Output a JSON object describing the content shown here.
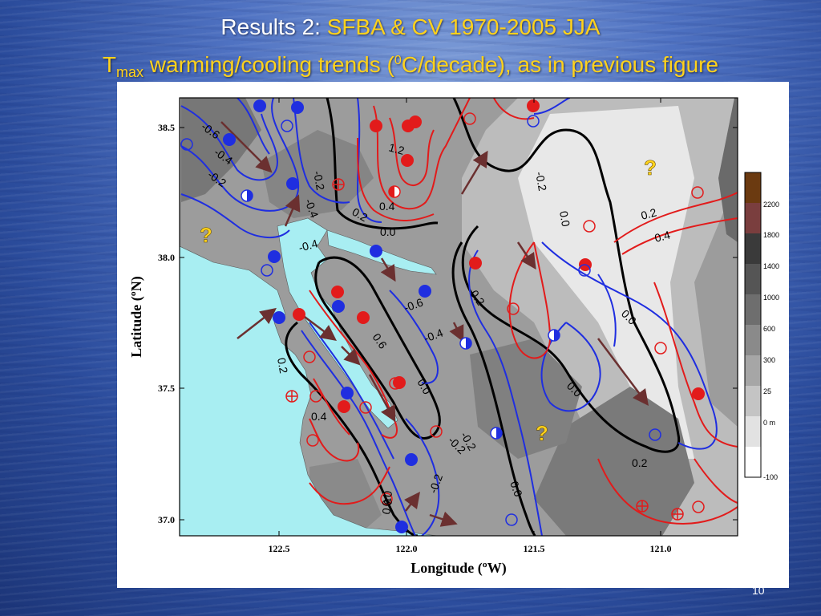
{
  "slide": {
    "title_prefix": "Results 2: ",
    "title_highlight": "SFBA & CV 1970-2005 JJA",
    "line2_T": "T",
    "line2_sub": "max",
    "line2_part1": " warming/cooling trends (",
    "line2_sup": "0",
    "line2_part2": "C/decade), as in previous figure",
    "page_number": "10"
  },
  "map": {
    "y_ticks": [
      "38.5",
      "38.0",
      "37.5",
      "37.0"
    ],
    "x_ticks": [
      "122.5",
      "122.0",
      "121.5",
      "121.0"
    ],
    "xlabel": "Longitude (ºW)",
    "ylabel": "Latitude (ºN)",
    "question_mark": "?",
    "contour_labels": [
      "-0.6",
      "-0.4",
      "-0.2",
      "-0.2",
      "-0.4",
      "-0.4",
      "0.2",
      "0.4",
      "1.2",
      "0.0",
      "-0.2",
      "0.0",
      "0.2",
      "0.4",
      "-0.6",
      "-0.4",
      "0.6",
      "0.2",
      "0.0",
      "0.0",
      "0.0",
      "-0.2",
      "0.2",
      "0.4",
      "-0.2",
      "0.0",
      "0.0",
      "0.2",
      "-0.2",
      "0.0"
    ],
    "legend": {
      "labels": [
        "2200",
        "1800",
        "1400",
        "1000",
        "600",
        "300",
        "25",
        "0 m",
        "-100"
      ],
      "colors": [
        "#6b3a10",
        "#7a3e3e",
        "#3a3a3a",
        "#555555",
        "#6e6e6e",
        "#8a8a8a",
        "#a6a6a6",
        "#c4c4c4",
        "#e2e2e2",
        "#ffffff"
      ]
    },
    "colors": {
      "water": "#a8eef2",
      "warming": "#e21b1b",
      "cooling": "#1f2ee0",
      "zero": "#000000",
      "arrow": "#6b3030",
      "question": "#ffd21c"
    }
  }
}
